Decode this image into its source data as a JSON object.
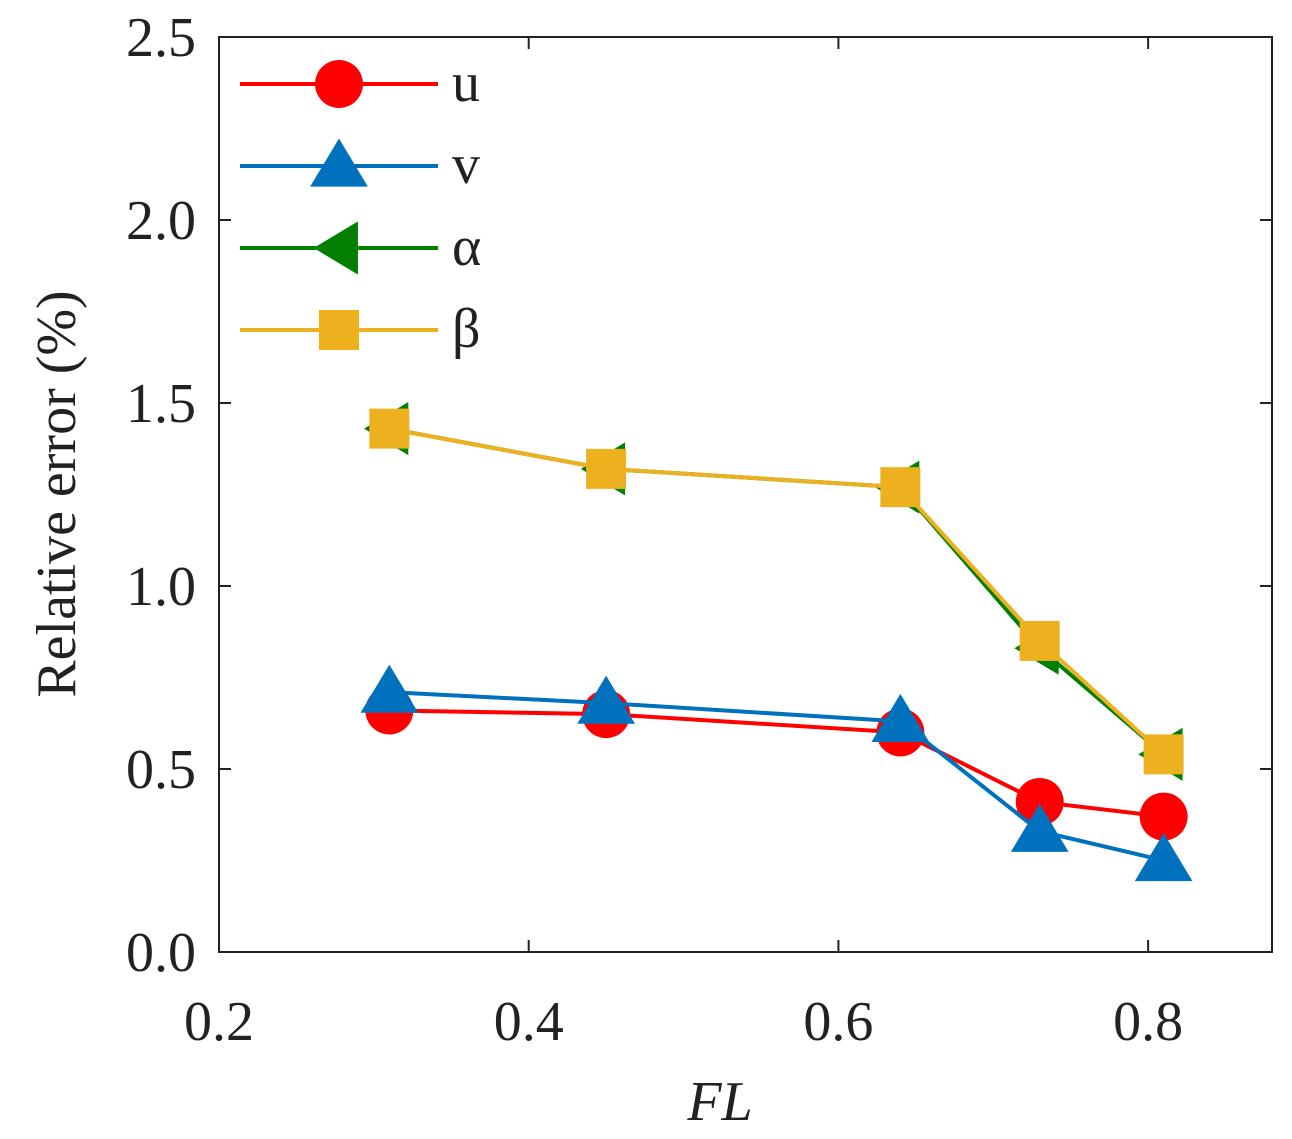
{
  "chart_data": {
    "type": "line",
    "title": "",
    "xlabel": "FL",
    "ylabel": "Relative error (%)",
    "xlim": [
      0.2,
      0.88
    ],
    "ylim": [
      0.0,
      2.5
    ],
    "xticks": [
      0.2,
      0.4,
      0.6,
      0.8
    ],
    "xtick_labels": [
      "0.2",
      "0.4",
      "0.6",
      "0.8"
    ],
    "yticks": [
      0.0,
      0.5,
      1.0,
      1.5,
      2.0,
      2.5
    ],
    "ytick_labels": [
      "0.0",
      "0.5",
      "1.0",
      "1.5",
      "2.0",
      "2.5"
    ],
    "grid": false,
    "legend_position": "top-left",
    "x": [
      0.31,
      0.45,
      0.64,
      0.73,
      0.81
    ],
    "series": [
      {
        "name": "u",
        "marker": "circle",
        "color": "#ff0000",
        "values": [
          0.66,
          0.65,
          0.6,
          0.41,
          0.37
        ]
      },
      {
        "name": "v",
        "marker": "triangle-up",
        "color": "#0072bd",
        "values": [
          0.71,
          0.68,
          0.63,
          0.33,
          0.25
        ]
      },
      {
        "name": "α",
        "marker": "triangle-left",
        "color": "#007f00",
        "values": [
          1.43,
          1.32,
          1.27,
          0.83,
          0.54
        ]
      },
      {
        "name": "β",
        "marker": "square",
        "color": "#edb120",
        "values": [
          1.43,
          1.32,
          1.27,
          0.85,
          0.54
        ]
      }
    ]
  }
}
